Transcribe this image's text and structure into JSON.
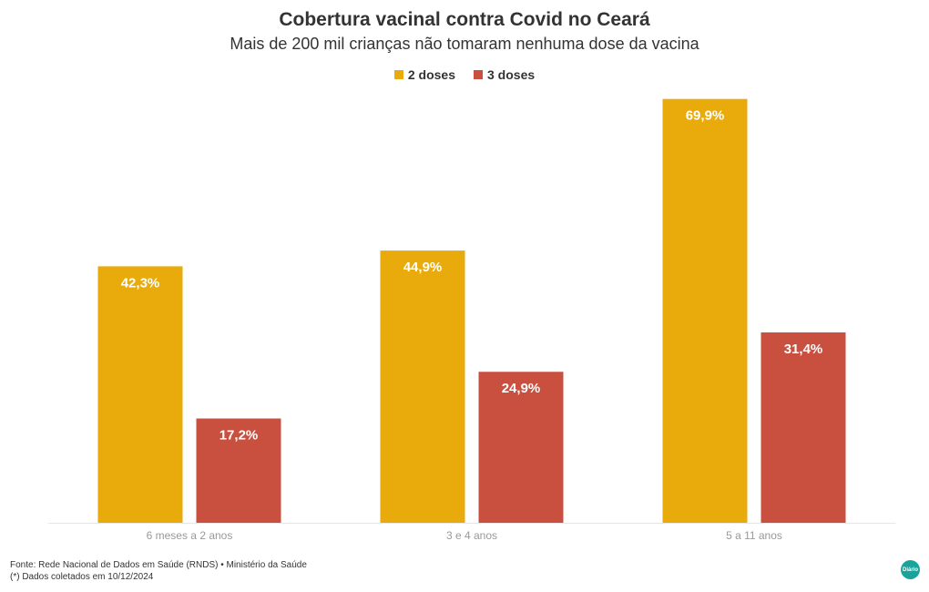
{
  "chart_data": {
    "type": "bar",
    "title": "Cobertura vacinal contra Covid no Ceará",
    "subtitle": "Mais de 200 mil crianças não tomaram nenhuma dose da vacina",
    "categories": [
      "6 meses a 2 anos",
      "3 e 4 anos",
      "5 a 11 anos"
    ],
    "series": [
      {
        "name": "2 doses",
        "color": "#e8ab0b",
        "values": [
          42.3,
          44.9,
          69.9
        ],
        "labels": [
          "42,3%",
          "44,9%",
          "69,9%"
        ]
      },
      {
        "name": "3 doses",
        "color": "#c9503f",
        "values": [
          17.2,
          24.9,
          31.4
        ],
        "labels": [
          "17,2%",
          "24,9%",
          "31,4%"
        ]
      }
    ],
    "xlabel": "",
    "ylabel": "",
    "ylim": [
      0,
      70
    ],
    "grid": false,
    "legend_position": "top-center",
    "data_labels": "inside-top"
  },
  "footer": {
    "source": "Fonte: Rede Nacional de Dados em Saúde (RNDS) • Ministério da Saúde",
    "note": "(*) Dados coletados em 10/12/2024"
  },
  "logo": {
    "text": "Diário",
    "icon": "diario-logo-icon"
  }
}
